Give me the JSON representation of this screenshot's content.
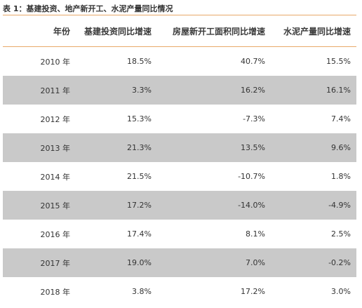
{
  "caption": "表 1：基建投资、地产新开工、水泥产量同比情况",
  "headers": [
    "年份",
    "基建投资同比增速",
    "房屋新开工面积同比增速",
    "水泥产量同比增速"
  ],
  "rows": [
    {
      "year": "2010 年",
      "infra": "18.5%",
      "housing": "40.7%",
      "cement": "15.5%"
    },
    {
      "year": "2011 年",
      "infra": "3.3%",
      "housing": "16.2%",
      "cement": "16.1%"
    },
    {
      "year": "2012 年",
      "infra": "15.3%",
      "housing": "-7.3%",
      "cement": "7.4%"
    },
    {
      "year": "2013 年",
      "infra": "21.3%",
      "housing": "13.5%",
      "cement": "9.6%"
    },
    {
      "year": "2014 年",
      "infra": "21.5%",
      "housing": "-10.7%",
      "cement": "1.8%"
    },
    {
      "year": "2015 年",
      "infra": "17.2%",
      "housing": "-14.0%",
      "cement": "-4.9%"
    },
    {
      "year": "2016 年",
      "infra": "17.4%",
      "housing": "8.1%",
      "cement": "2.5%"
    },
    {
      "year": "2017 年",
      "infra": "19.0%",
      "housing": "7.0%",
      "cement": "-0.2%"
    },
    {
      "year": "2018 年",
      "infra": "3.8%",
      "housing": "17.2%",
      "cement": "3.0%"
    }
  ],
  "colors": {
    "rule": "#e8a96a",
    "shaded_row": "#c9c9c9"
  }
}
